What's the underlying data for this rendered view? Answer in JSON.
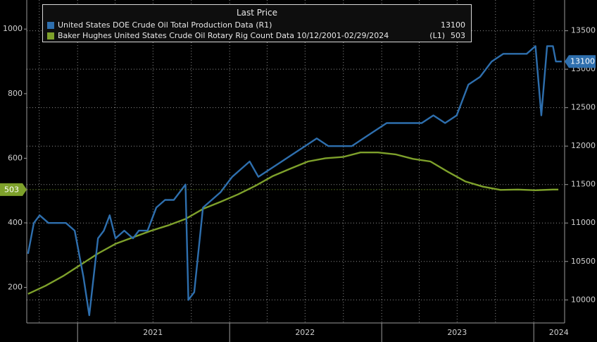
{
  "chart_data": {
    "type": "line",
    "legend": {
      "header": "Last Price",
      "placement": "top-left",
      "entries": [
        {
          "series": "production",
          "text": "United States DOE Crude Oil Total Production Data  (R1)",
          "value": "13100"
        },
        {
          "series": "rigs",
          "text": "Baker Hughes United States Crude Oil Rotary Rig Count Data 10/12/2001-02/29/2024",
          "axis_tag": "(L1)",
          "value": "503"
        }
      ]
    },
    "x_axis": {
      "type": "time",
      "range": [
        "2020-09-01",
        "2024-03-15"
      ],
      "tick_labels": [
        "2021",
        "2022",
        "2023",
        "2024"
      ],
      "tick_label_dates": [
        "2021-07-01",
        "2022-07-01",
        "2023-07-01",
        "2024-03-01"
      ],
      "year_boundaries": [
        "2021-01-01",
        "2022-01-01",
        "2023-01-01",
        "2024-01-01"
      ]
    },
    "left_axis": {
      "range": [
        90,
        1090
      ],
      "ticks": [
        200,
        400,
        600,
        800,
        1000
      ],
      "last_value_tag": "503"
    },
    "right_axis": {
      "range": [
        9700,
        13900
      ],
      "ticks": [
        10000,
        10500,
        11000,
        11500,
        12000,
        12500,
        13000,
        13500
      ],
      "last_value_tag": "13100"
    },
    "grid": true,
    "series": [
      {
        "id": "rigs",
        "name": "Baker Hughes United States Crude Oil Rotary Rig Count Data",
        "axis": "left",
        "color": "#7ea12b",
        "points": [
          [
            "2020-09-04",
            180
          ],
          [
            "2020-10-16",
            205
          ],
          [
            "2020-11-27",
            235
          ],
          [
            "2021-01-08",
            270
          ],
          [
            "2021-02-19",
            305
          ],
          [
            "2021-04-02",
            335
          ],
          [
            "2021-05-14",
            355
          ],
          [
            "2021-06-25",
            375
          ],
          [
            "2021-08-06",
            392
          ],
          [
            "2021-09-17",
            412
          ],
          [
            "2021-10-29",
            443
          ],
          [
            "2021-12-10",
            465
          ],
          [
            "2022-01-21",
            488
          ],
          [
            "2022-03-04",
            515
          ],
          [
            "2022-04-15",
            545
          ],
          [
            "2022-05-27",
            568
          ],
          [
            "2022-07-08",
            590
          ],
          [
            "2022-08-19",
            600
          ],
          [
            "2022-09-30",
            604
          ],
          [
            "2022-11-11",
            618
          ],
          [
            "2022-12-23",
            618
          ],
          [
            "2023-02-03",
            612
          ],
          [
            "2023-03-17",
            598
          ],
          [
            "2023-04-28",
            590
          ],
          [
            "2023-06-09",
            558
          ],
          [
            "2023-07-21",
            528
          ],
          [
            "2023-09-01",
            512
          ],
          [
            "2023-10-13",
            502
          ],
          [
            "2023-11-24",
            503
          ],
          [
            "2024-01-05",
            501
          ],
          [
            "2024-02-16",
            503
          ],
          [
            "2024-02-29",
            503
          ]
        ]
      },
      {
        "id": "production",
        "name": "United States DOE Crude Oil Total Production Data",
        "axis": "right",
        "color": "#2e6fae",
        "points": [
          [
            "2020-09-04",
            10600
          ],
          [
            "2020-09-18",
            11000
          ],
          [
            "2020-10-02",
            11100
          ],
          [
            "2020-10-23",
            11000
          ],
          [
            "2020-11-13",
            11000
          ],
          [
            "2020-12-04",
            11000
          ],
          [
            "2020-12-25",
            10900
          ],
          [
            "2021-01-15",
            10300
          ],
          [
            "2021-01-29",
            9800
          ],
          [
            "2021-02-19",
            10800
          ],
          [
            "2021-03-05",
            10900
          ],
          [
            "2021-03-19",
            11100
          ],
          [
            "2021-04-02",
            10800
          ],
          [
            "2021-04-23",
            10900
          ],
          [
            "2021-05-14",
            10800
          ],
          [
            "2021-05-28",
            10900
          ],
          [
            "2021-06-18",
            10900
          ],
          [
            "2021-07-09",
            11200
          ],
          [
            "2021-07-30",
            11300
          ],
          [
            "2021-08-20",
            11300
          ],
          [
            "2021-09-03",
            11400
          ],
          [
            "2021-09-17",
            11500
          ],
          [
            "2021-09-24",
            10000
          ],
          [
            "2021-10-08",
            10100
          ],
          [
            "2021-10-29",
            11200
          ],
          [
            "2021-11-19",
            11300
          ],
          [
            "2021-12-10",
            11400
          ],
          [
            "2022-01-07",
            11600
          ],
          [
            "2022-01-28",
            11700
          ],
          [
            "2022-02-18",
            11800
          ],
          [
            "2022-03-11",
            11600
          ],
          [
            "2022-04-08",
            11700
          ],
          [
            "2022-05-06",
            11800
          ],
          [
            "2022-06-03",
            11900
          ],
          [
            "2022-07-01",
            12000
          ],
          [
            "2022-07-29",
            12100
          ],
          [
            "2022-08-26",
            12000
          ],
          [
            "2022-09-23",
            12000
          ],
          [
            "2022-10-21",
            12000
          ],
          [
            "2022-11-18",
            12100
          ],
          [
            "2022-12-16",
            12200
          ],
          [
            "2023-01-13",
            12300
          ],
          [
            "2023-02-10",
            12300
          ],
          [
            "2023-03-10",
            12300
          ],
          [
            "2023-04-07",
            12300
          ],
          [
            "2023-05-05",
            12400
          ],
          [
            "2023-06-02",
            12300
          ],
          [
            "2023-06-30",
            12400
          ],
          [
            "2023-07-28",
            12800
          ],
          [
            "2023-08-25",
            12900
          ],
          [
            "2023-09-22",
            13100
          ],
          [
            "2023-10-20",
            13200
          ],
          [
            "2023-11-17",
            13200
          ],
          [
            "2023-12-15",
            13200
          ],
          [
            "2024-01-05",
            13300
          ],
          [
            "2024-01-19",
            12400
          ],
          [
            "2024-02-02",
            13300
          ],
          [
            "2024-02-16",
            13300
          ],
          [
            "2024-02-23",
            13100
          ],
          [
            "2024-03-08",
            13100
          ]
        ]
      }
    ]
  }
}
